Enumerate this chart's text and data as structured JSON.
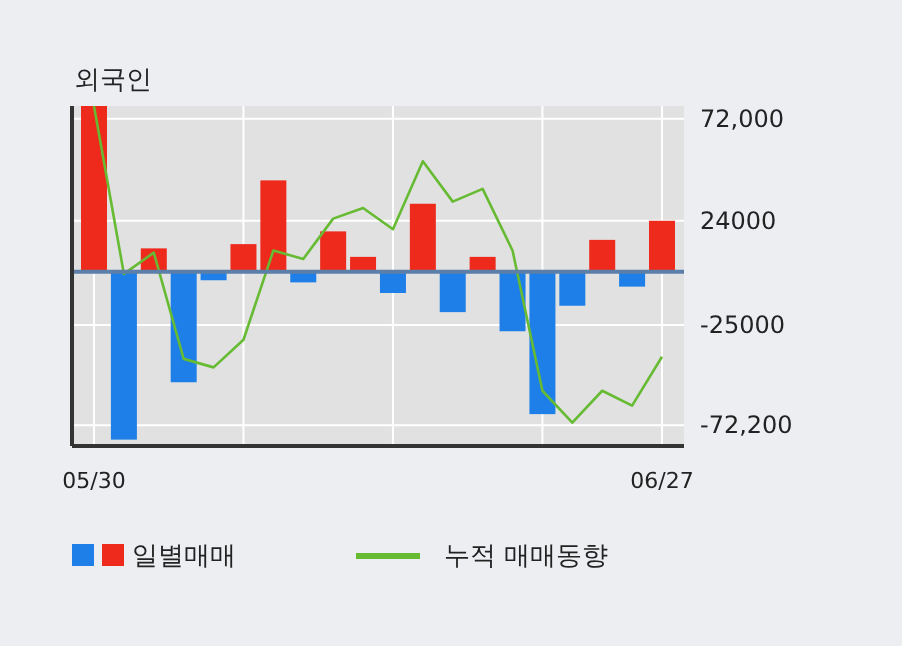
{
  "chart_data": {
    "type": "bar",
    "title": "외국인",
    "categories": [
      "05/30",
      null,
      null,
      null,
      null,
      null,
      null,
      null,
      null,
      null,
      null,
      null,
      null,
      null,
      null,
      null,
      null,
      null,
      null,
      "06/27"
    ],
    "ylim": [
      -82000,
      78000
    ],
    "yticks": [
      {
        "value": 72000,
        "label": "72,000"
      },
      24000,
      -25000,
      {
        "value": -72200,
        "label": "-72,200"
      }
    ],
    "grid": true,
    "legend": "bottom",
    "ref_lines": [
      {
        "axis": "y",
        "value": 0,
        "color": "#5b7fa8"
      }
    ],
    "series": [
      {
        "name": "일별매매",
        "colors": [
          "#ee2a1c",
          "#1e7fe8",
          "#ee2a1c",
          "#1e7fe8",
          "#1e7fe8",
          "#ee2a1c",
          "#ee2a1c",
          "#1e7fe8",
          "#ee2a1c",
          "#ee2a1c",
          "#1e7fe8",
          "#ee2a1c",
          "#1e7fe8",
          "#ee2a1c",
          "#1e7fe8",
          "#1e7fe8",
          "#1e7fe8",
          "#ee2a1c",
          "#1e7fe8",
          "#ee2a1c"
        ],
        "values": [
          78000,
          -79000,
          11000,
          -52000,
          -4000,
          13000,
          43000,
          -5000,
          19000,
          7000,
          -10000,
          32000,
          -19000,
          7000,
          -28000,
          -67000,
          -16000,
          15000,
          -7000,
          24000
        ]
      },
      {
        "name": "누적 매매동향",
        "type": "line",
        "color": "#66bb33",
        "values": [
          78000,
          -1000,
          9000,
          -41000,
          -45000,
          -32000,
          10000,
          6000,
          25000,
          30000,
          20000,
          52000,
          33000,
          39000,
          10000,
          -56000,
          -71000,
          -56000,
          -63000,
          -40000
        ]
      }
    ]
  }
}
